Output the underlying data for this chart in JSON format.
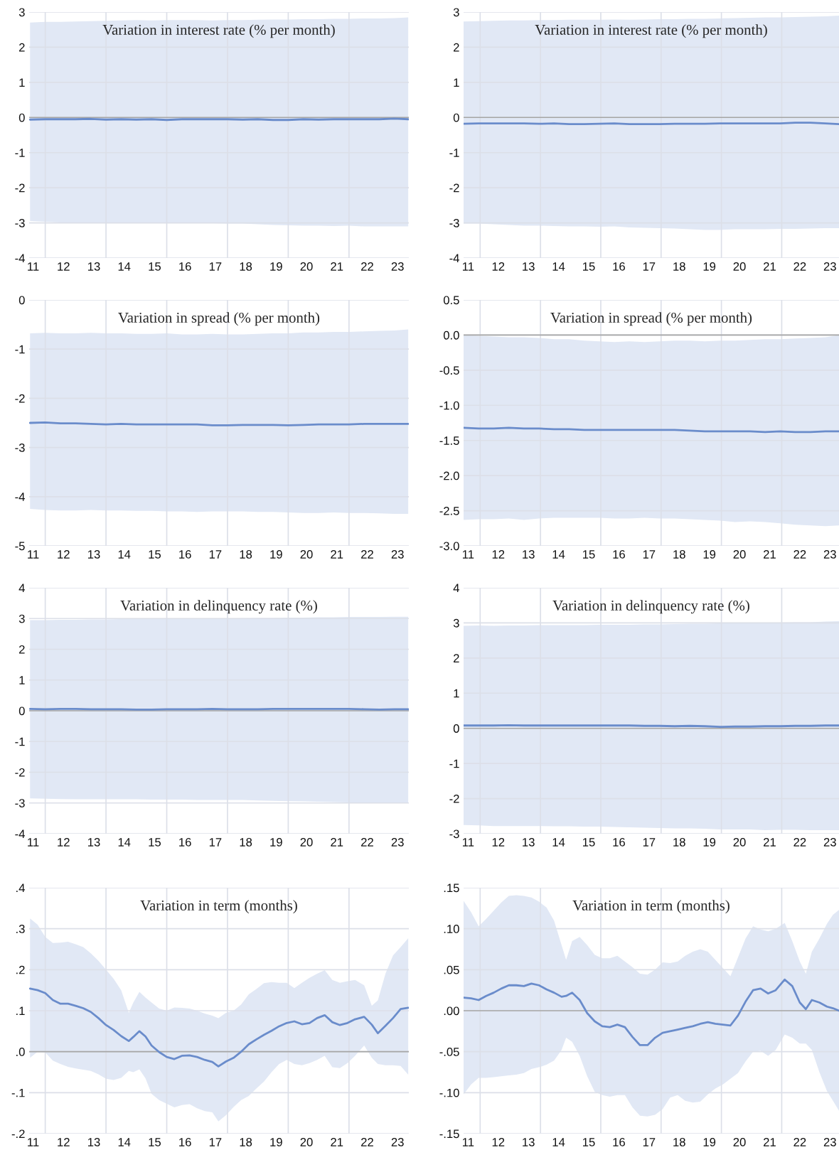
{
  "chart_data": [
    {
      "type": "line",
      "title": "Variation in interest rate (% per month)",
      "x": [
        10.9,
        11.4,
        11.9,
        12.4,
        12.9,
        13.4,
        13.9,
        14.4,
        14.9,
        15.4,
        15.9,
        16.4,
        16.9,
        17.4,
        17.9,
        18.4,
        18.9,
        19.4,
        19.9,
        20.4,
        20.9,
        21.4,
        21.9,
        22.4,
        22.9,
        23.35
      ],
      "series": [
        {
          "color": "#6a8ccb",
          "values": [
            -0.06,
            -0.05,
            -0.05,
            -0.05,
            -0.04,
            -0.06,
            -0.05,
            -0.06,
            -0.05,
            -0.07,
            -0.05,
            -0.05,
            -0.05,
            -0.05,
            -0.06,
            -0.05,
            -0.07,
            -0.07,
            -0.05,
            -0.06,
            -0.05,
            -0.05,
            -0.05,
            -0.05,
            -0.03,
            -0.05
          ],
          "upper": [
            2.7,
            2.72,
            2.72,
            2.73,
            2.74,
            2.75,
            2.76,
            2.77,
            2.76,
            2.77,
            2.77,
            2.77,
            2.76,
            2.77,
            2.77,
            2.78,
            2.79,
            2.79,
            2.8,
            2.8,
            2.81,
            2.81,
            2.82,
            2.82,
            2.83,
            2.85
          ],
          "lower": [
            -2.95,
            -2.97,
            -2.99,
            -3.0,
            -3.0,
            -3.0,
            -2.99,
            -3.0,
            -2.99,
            -3.0,
            -3.01,
            -3.0,
            -3.01,
            -3.02,
            -3.02,
            -3.04,
            -3.06,
            -3.07,
            -3.08,
            -3.08,
            -3.09,
            -3.08,
            -3.1,
            -3.1,
            -3.1,
            -3.1
          ]
        }
      ],
      "xlim": [
        10.87,
        23.37
      ],
      "xticks": [
        11,
        12,
        13,
        14,
        15,
        16,
        17,
        18,
        19,
        20,
        21,
        22,
        23
      ],
      "ylim": [
        -4,
        3
      ],
      "yticks": [
        3,
        2,
        1,
        0,
        -1,
        -2,
        -3,
        -4
      ],
      "grid": "y",
      "ref_lines": [
        {
          "axis": "y",
          "value": 0,
          "color": "#a6a6a6"
        },
        {
          "axis": "x",
          "value": 11.4,
          "color": "#dcdfe8"
        },
        {
          "axis": "x",
          "value": 13.4,
          "color": "#dcdfe8"
        },
        {
          "axis": "x",
          "value": 15.4,
          "color": "#dcdfe8"
        },
        {
          "axis": "x",
          "value": 17.4,
          "color": "#dcdfe8"
        },
        {
          "axis": "x",
          "value": 19.4,
          "color": "#dcdfe8"
        },
        {
          "axis": "x",
          "value": 21.4,
          "color": "#dcdfe8"
        }
      ]
    },
    {
      "type": "line",
      "title": "Variation in interest rate (% per month)",
      "x": [
        10.85,
        11.35,
        11.85,
        12.35,
        12.85,
        13.35,
        13.85,
        14.35,
        14.85,
        15.35,
        15.85,
        16.35,
        16.85,
        17.35,
        17.85,
        18.35,
        18.85,
        19.35,
        19.85,
        20.35,
        20.85,
        21.35,
        21.85,
        22.35,
        22.85,
        23.3
      ],
      "series": [
        {
          "color": "#6a8ccb",
          "values": [
            -0.18,
            -0.17,
            -0.17,
            -0.17,
            -0.17,
            -0.18,
            -0.17,
            -0.19,
            -0.19,
            -0.18,
            -0.17,
            -0.19,
            -0.19,
            -0.19,
            -0.18,
            -0.18,
            -0.18,
            -0.17,
            -0.17,
            -0.17,
            -0.17,
            -0.17,
            -0.15,
            -0.15,
            -0.17,
            -0.19
          ],
          "upper": [
            2.73,
            2.74,
            2.75,
            2.76,
            2.76,
            2.77,
            2.77,
            2.78,
            2.78,
            2.78,
            2.79,
            2.78,
            2.79,
            2.8,
            2.8,
            2.81,
            2.81,
            2.82,
            2.83,
            2.84,
            2.85,
            2.85,
            2.86,
            2.87,
            2.88,
            2.9
          ],
          "lower": [
            -3.02,
            -3.02,
            -3.04,
            -3.06,
            -3.08,
            -3.08,
            -3.09,
            -3.1,
            -3.1,
            -3.11,
            -3.1,
            -3.13,
            -3.14,
            -3.15,
            -3.16,
            -3.18,
            -3.2,
            -3.2,
            -3.18,
            -3.18,
            -3.18,
            -3.17,
            -3.17,
            -3.16,
            -3.15,
            -3.15
          ]
        }
      ],
      "xlim": [
        10.85,
        23.3
      ],
      "xticks": [
        11,
        12,
        13,
        14,
        15,
        16,
        17,
        18,
        19,
        20,
        21,
        22,
        23
      ],
      "ylim": [
        -4,
        3
      ],
      "yticks": [
        3,
        2,
        1,
        0,
        -1,
        -2,
        -3,
        -4
      ],
      "grid": "y",
      "ref_lines": [
        {
          "axis": "y",
          "value": 0,
          "color": "#a6a6a6"
        },
        {
          "axis": "x",
          "value": 11.4,
          "color": "#dcdfe8"
        },
        {
          "axis": "x",
          "value": 13.4,
          "color": "#dcdfe8"
        },
        {
          "axis": "x",
          "value": 15.4,
          "color": "#dcdfe8"
        },
        {
          "axis": "x",
          "value": 17.4,
          "color": "#dcdfe8"
        },
        {
          "axis": "x",
          "value": 19.4,
          "color": "#dcdfe8"
        },
        {
          "axis": "x",
          "value": 21.4,
          "color": "#dcdfe8"
        }
      ]
    },
    {
      "type": "line",
      "title": "Variation in spread (% per month)",
      "x": [
        10.9,
        11.4,
        11.9,
        12.4,
        12.9,
        13.4,
        13.9,
        14.4,
        14.9,
        15.4,
        15.9,
        16.4,
        16.9,
        17.4,
        17.9,
        18.4,
        18.9,
        19.4,
        19.9,
        20.4,
        20.9,
        21.4,
        21.9,
        22.4,
        22.9,
        23.35
      ],
      "series": [
        {
          "color": "#6a8ccb",
          "values": [
            -2.5,
            -2.49,
            -2.51,
            -2.51,
            -2.52,
            -2.53,
            -2.52,
            -2.53,
            -2.53,
            -2.53,
            -2.53,
            -2.53,
            -2.55,
            -2.55,
            -2.54,
            -2.54,
            -2.54,
            -2.55,
            -2.54,
            -2.53,
            -2.53,
            -2.53,
            -2.52,
            -2.52,
            -2.52,
            -2.52
          ],
          "upper": [
            -0.68,
            -0.67,
            -0.68,
            -0.68,
            -0.67,
            -0.68,
            -0.68,
            -0.69,
            -0.69,
            -0.68,
            -0.7,
            -0.7,
            -0.69,
            -0.7,
            -0.7,
            -0.69,
            -0.68,
            -0.68,
            -0.66,
            -0.66,
            -0.65,
            -0.65,
            -0.64,
            -0.63,
            -0.62,
            -0.6
          ],
          "lower": [
            -4.25,
            -4.27,
            -4.28,
            -4.28,
            -4.27,
            -4.28,
            -4.28,
            -4.29,
            -4.29,
            -4.3,
            -4.3,
            -4.31,
            -4.3,
            -4.3,
            -4.3,
            -4.31,
            -4.31,
            -4.32,
            -4.33,
            -4.33,
            -4.32,
            -4.33,
            -4.33,
            -4.34,
            -4.35,
            -4.35
          ]
        }
      ],
      "xlim": [
        10.87,
        23.37
      ],
      "xticks": [
        11,
        12,
        13,
        14,
        15,
        16,
        17,
        18,
        19,
        20,
        21,
        22,
        23
      ],
      "ylim": [
        -5,
        0
      ],
      "yticks": [
        0,
        -1,
        -2,
        -3,
        -4,
        -5
      ],
      "grid": "y",
      "ref_lines": [
        {
          "axis": "x",
          "value": 11.4,
          "color": "#dcdfe8"
        },
        {
          "axis": "x",
          "value": 13.4,
          "color": "#dcdfe8"
        },
        {
          "axis": "x",
          "value": 15.4,
          "color": "#dcdfe8"
        },
        {
          "axis": "x",
          "value": 17.4,
          "color": "#dcdfe8"
        },
        {
          "axis": "x",
          "value": 19.4,
          "color": "#dcdfe8"
        },
        {
          "axis": "x",
          "value": 21.4,
          "color": "#dcdfe8"
        }
      ]
    },
    {
      "type": "line",
      "title": "Variation in spread (% per month)",
      "x": [
        10.85,
        11.35,
        11.85,
        12.35,
        12.85,
        13.35,
        13.85,
        14.35,
        14.85,
        15.35,
        15.85,
        16.35,
        16.85,
        17.35,
        17.85,
        18.35,
        18.85,
        19.35,
        19.85,
        20.35,
        20.85,
        21.35,
        21.85,
        22.35,
        22.85,
        23.3
      ],
      "series": [
        {
          "color": "#6a8ccb",
          "values": [
            -1.32,
            -1.33,
            -1.33,
            -1.32,
            -1.33,
            -1.33,
            -1.34,
            -1.34,
            -1.35,
            -1.35,
            -1.35,
            -1.35,
            -1.35,
            -1.35,
            -1.35,
            -1.36,
            -1.37,
            -1.37,
            -1.37,
            -1.37,
            -1.38,
            -1.37,
            -1.38,
            -1.38,
            -1.37,
            -1.37
          ],
          "upper": [
            0.0,
            -0.01,
            -0.02,
            -0.03,
            -0.03,
            -0.04,
            -0.06,
            -0.06,
            -0.08,
            -0.09,
            -0.1,
            -0.09,
            -0.1,
            -0.09,
            -0.08,
            -0.08,
            -0.09,
            -0.08,
            -0.08,
            -0.07,
            -0.06,
            -0.06,
            -0.05,
            -0.04,
            -0.03,
            0.0
          ],
          "lower": [
            -2.63,
            -2.62,
            -2.62,
            -2.61,
            -2.63,
            -2.61,
            -2.6,
            -2.6,
            -2.6,
            -2.6,
            -2.61,
            -2.61,
            -2.6,
            -2.61,
            -2.61,
            -2.62,
            -2.63,
            -2.64,
            -2.66,
            -2.65,
            -2.66,
            -2.68,
            -2.7,
            -2.71,
            -2.72,
            -2.71
          ]
        }
      ],
      "xlim": [
        10.85,
        23.3
      ],
      "xticks": [
        11,
        12,
        13,
        14,
        15,
        16,
        17,
        18,
        19,
        20,
        21,
        22,
        23
      ],
      "ylim": [
        -3,
        0.5
      ],
      "yticks": [
        0.5,
        {
          "value": 0,
          "label": "0.0"
        },
        -0.5,
        {
          "value": -1,
          "label": "-1.0"
        },
        -1.5,
        {
          "value": -2,
          "label": "-2.0"
        },
        -2.5,
        {
          "value": -3,
          "label": "-3.0"
        }
      ],
      "grid": "y",
      "ref_lines": [
        {
          "axis": "y",
          "value": 0,
          "color": "#a6a6a6"
        },
        {
          "axis": "x",
          "value": 11.4,
          "color": "#dcdfe8"
        },
        {
          "axis": "x",
          "value": 13.4,
          "color": "#dcdfe8"
        },
        {
          "axis": "x",
          "value": 15.4,
          "color": "#dcdfe8"
        },
        {
          "axis": "x",
          "value": 17.4,
          "color": "#dcdfe8"
        },
        {
          "axis": "x",
          "value": 19.4,
          "color": "#dcdfe8"
        },
        {
          "axis": "x",
          "value": 21.4,
          "color": "#dcdfe8"
        }
      ]
    },
    {
      "type": "line",
      "title": "Variation in delinquency rate (%)",
      "x": [
        10.9,
        11.4,
        11.9,
        12.4,
        12.9,
        13.4,
        13.9,
        14.4,
        14.9,
        15.4,
        15.9,
        16.4,
        16.9,
        17.4,
        17.9,
        18.4,
        18.9,
        19.4,
        19.9,
        20.4,
        20.9,
        21.4,
        21.9,
        22.4,
        22.9,
        23.35
      ],
      "series": [
        {
          "color": "#6a8ccb",
          "values": [
            0.06,
            0.05,
            0.06,
            0.06,
            0.05,
            0.05,
            0.05,
            0.04,
            0.04,
            0.05,
            0.05,
            0.05,
            0.06,
            0.05,
            0.05,
            0.05,
            0.06,
            0.06,
            0.06,
            0.06,
            0.06,
            0.06,
            0.05,
            0.04,
            0.05,
            0.05
          ],
          "upper": [
            2.95,
            2.95,
            2.96,
            2.96,
            2.97,
            2.97,
            2.98,
            2.98,
            2.98,
            2.99,
            2.99,
            3.0,
            3.0,
            3.0,
            3.01,
            3.02,
            3.02,
            3.03,
            3.03,
            3.04,
            3.04,
            3.05,
            3.05,
            3.05,
            3.06,
            3.06
          ],
          "lower": [
            -2.85,
            -2.86,
            -2.87,
            -2.88,
            -2.88,
            -2.88,
            -2.88,
            -2.88,
            -2.89,
            -2.89,
            -2.89,
            -2.9,
            -2.9,
            -2.9,
            -2.9,
            -2.92,
            -2.93,
            -2.94,
            -2.95,
            -2.96,
            -2.97,
            -2.98,
            -2.99,
            -3.0,
            -3.0,
            -3.0
          ]
        }
      ],
      "xlim": [
        10.87,
        23.37
      ],
      "xticks": [
        11,
        12,
        13,
        14,
        15,
        16,
        17,
        18,
        19,
        20,
        21,
        22,
        23
      ],
      "ylim": [
        -4,
        4
      ],
      "yticks": [
        4,
        3,
        2,
        1,
        0,
        -1,
        -2,
        -3,
        -4
      ],
      "grid": "y",
      "ref_lines": [
        {
          "axis": "y",
          "value": 0,
          "color": "#a6a6a6"
        },
        {
          "axis": "x",
          "value": 11.4,
          "color": "#dcdfe8"
        },
        {
          "axis": "x",
          "value": 13.4,
          "color": "#dcdfe8"
        },
        {
          "axis": "x",
          "value": 15.4,
          "color": "#dcdfe8"
        },
        {
          "axis": "x",
          "value": 17.4,
          "color": "#dcdfe8"
        },
        {
          "axis": "x",
          "value": 19.4,
          "color": "#dcdfe8"
        },
        {
          "axis": "x",
          "value": 21.4,
          "color": "#dcdfe8"
        }
      ]
    },
    {
      "type": "line",
      "title": "Variation in delinquency rate (%)",
      "x": [
        10.85,
        11.35,
        11.85,
        12.35,
        12.85,
        13.35,
        13.85,
        14.35,
        14.85,
        15.35,
        15.85,
        16.35,
        16.85,
        17.35,
        17.85,
        18.35,
        18.85,
        19.35,
        19.85,
        20.35,
        20.85,
        21.35,
        21.85,
        22.35,
        22.85,
        23.3
      ],
      "series": [
        {
          "color": "#6a8ccb",
          "values": [
            0.08,
            0.08,
            0.08,
            0.09,
            0.08,
            0.08,
            0.08,
            0.08,
            0.08,
            0.08,
            0.08,
            0.08,
            0.07,
            0.07,
            0.06,
            0.07,
            0.06,
            0.04,
            0.05,
            0.05,
            0.06,
            0.06,
            0.07,
            0.07,
            0.08,
            0.08
          ],
          "upper": [
            2.92,
            2.93,
            2.92,
            2.93,
            2.93,
            2.94,
            2.94,
            2.94,
            2.94,
            2.95,
            2.95,
            2.95,
            2.96,
            2.96,
            2.97,
            2.98,
            2.98,
            2.99,
            2.99,
            3.0,
            3.0,
            3.01,
            3.02,
            3.02,
            3.04,
            3.05
          ],
          "lower": [
            -2.75,
            -2.76,
            -2.78,
            -2.78,
            -2.78,
            -2.78,
            -2.79,
            -2.79,
            -2.8,
            -2.8,
            -2.81,
            -2.82,
            -2.83,
            -2.84,
            -2.85,
            -2.85,
            -2.86,
            -2.88,
            -2.88,
            -2.88,
            -2.9,
            -2.89,
            -2.89,
            -2.9,
            -2.9,
            -2.9
          ]
        }
      ],
      "xlim": [
        10.85,
        23.3
      ],
      "xticks": [
        11,
        12,
        13,
        14,
        15,
        16,
        17,
        18,
        19,
        20,
        21,
        22,
        23
      ],
      "ylim": [
        -3,
        4
      ],
      "yticks": [
        4,
        3,
        2,
        1,
        0,
        -1,
        -2,
        -3
      ],
      "grid": "y",
      "ref_lines": [
        {
          "axis": "y",
          "value": 0,
          "color": "#a6a6a6"
        },
        {
          "axis": "x",
          "value": 11.4,
          "color": "#dcdfe8"
        },
        {
          "axis": "x",
          "value": 13.4,
          "color": "#dcdfe8"
        },
        {
          "axis": "x",
          "value": 15.4,
          "color": "#dcdfe8"
        },
        {
          "axis": "x",
          "value": 17.4,
          "color": "#dcdfe8"
        },
        {
          "axis": "x",
          "value": 19.4,
          "color": "#dcdfe8"
        },
        {
          "axis": "x",
          "value": 21.4,
          "color": "#dcdfe8"
        }
      ]
    },
    {
      "type": "line",
      "title": "Variation in term (months)",
      "x": [
        10.9,
        11.15,
        11.4,
        11.65,
        11.9,
        12.15,
        12.4,
        12.65,
        12.9,
        13.15,
        13.4,
        13.65,
        13.9,
        14.15,
        14.3,
        14.5,
        14.7,
        14.9,
        15.15,
        15.4,
        15.65,
        15.9,
        16.15,
        16.4,
        16.65,
        16.9,
        17.1,
        17.35,
        17.6,
        17.85,
        18.1,
        18.35,
        18.6,
        18.85,
        19.1,
        19.35,
        19.6,
        19.85,
        20.1,
        20.35,
        20.6,
        20.85,
        21.1,
        21.35,
        21.6,
        21.9,
        22.15,
        22.35,
        22.6,
        22.85,
        23.1,
        23.35
      ],
      "series": [
        {
          "color": "#6a8ccb",
          "values": [
            0.154,
            0.15,
            0.143,
            0.126,
            0.117,
            0.117,
            0.112,
            0.106,
            0.097,
            0.082,
            0.065,
            0.053,
            0.038,
            0.026,
            0.036,
            0.05,
            0.037,
            0.015,
            -0.001,
            -0.013,
            -0.018,
            -0.01,
            -0.009,
            -0.013,
            -0.02,
            -0.025,
            -0.036,
            -0.024,
            -0.015,
            0.0,
            0.018,
            0.03,
            0.041,
            0.051,
            0.062,
            0.07,
            0.074,
            0.067,
            0.07,
            0.082,
            0.089,
            0.072,
            0.065,
            0.07,
            0.079,
            0.085,
            0.066,
            0.045,
            0.063,
            0.082,
            0.104,
            0.107
          ],
          "upper": [
            0.325,
            0.31,
            0.28,
            0.265,
            0.266,
            0.268,
            0.262,
            0.255,
            0.24,
            0.222,
            0.2,
            0.178,
            0.15,
            0.095,
            0.12,
            0.146,
            0.132,
            0.12,
            0.105,
            0.1,
            0.108,
            0.107,
            0.105,
            0.1,
            0.093,
            0.088,
            0.082,
            0.095,
            0.1,
            0.115,
            0.14,
            0.153,
            0.167,
            0.17,
            0.168,
            0.168,
            0.155,
            0.168,
            0.18,
            0.19,
            0.199,
            0.175,
            0.168,
            0.172,
            0.175,
            0.162,
            0.112,
            0.125,
            0.19,
            0.235,
            0.255,
            0.277
          ],
          "lower": [
            -0.015,
            0.0,
            -0.002,
            -0.022,
            -0.03,
            -0.037,
            -0.041,
            -0.044,
            -0.047,
            -0.055,
            -0.066,
            -0.069,
            -0.064,
            -0.047,
            -0.05,
            -0.043,
            -0.065,
            -0.103,
            -0.118,
            -0.127,
            -0.136,
            -0.13,
            -0.128,
            -0.138,
            -0.145,
            -0.148,
            -0.17,
            -0.155,
            -0.135,
            -0.118,
            -0.108,
            -0.09,
            -0.073,
            -0.05,
            -0.03,
            -0.02,
            -0.03,
            -0.033,
            -0.028,
            -0.02,
            -0.01,
            -0.038,
            -0.04,
            -0.028,
            -0.01,
            0.015,
            -0.015,
            -0.03,
            -0.033,
            -0.033,
            -0.035,
            -0.056
          ]
        }
      ],
      "xlim": [
        10.87,
        23.37
      ],
      "xticks": [
        11,
        12,
        13,
        14,
        15,
        16,
        17,
        18,
        19,
        20,
        21,
        22,
        23
      ],
      "ylim": [
        -0.2,
        0.4
      ],
      "yticks": [
        {
          "value": 0.4,
          "label": ".4"
        },
        {
          "value": 0.3,
          "label": ".3"
        },
        {
          "value": 0.2,
          "label": ".2"
        },
        {
          "value": 0.1,
          "label": ".1"
        },
        {
          "value": 0,
          "label": ".0"
        },
        {
          "value": -0.1,
          "label": "-.1"
        },
        {
          "value": -0.2,
          "label": "-.2"
        }
      ],
      "grid": "y",
      "ref_lines": [
        {
          "axis": "y",
          "value": 0,
          "color": "#a6a6a6"
        },
        {
          "axis": "x",
          "value": 11.4,
          "color": "#dcdfe8"
        },
        {
          "axis": "x",
          "value": 13.4,
          "color": "#dcdfe8"
        },
        {
          "axis": "x",
          "value": 15.4,
          "color": "#dcdfe8"
        },
        {
          "axis": "x",
          "value": 17.4,
          "color": "#dcdfe8"
        },
        {
          "axis": "x",
          "value": 19.4,
          "color": "#dcdfe8"
        },
        {
          "axis": "x",
          "value": 21.4,
          "color": "#dcdfe8"
        }
      ]
    },
    {
      "type": "line",
      "title": "Variation in term (months)",
      "x": [
        10.85,
        11.1,
        11.35,
        11.6,
        11.85,
        12.1,
        12.35,
        12.6,
        12.85,
        13.1,
        13.35,
        13.6,
        13.85,
        14.1,
        14.25,
        14.45,
        14.7,
        14.95,
        15.2,
        15.45,
        15.7,
        15.95,
        16.2,
        16.45,
        16.7,
        16.95,
        17.2,
        17.45,
        17.7,
        17.95,
        18.2,
        18.45,
        18.7,
        18.95,
        19.2,
        19.45,
        19.7,
        19.95,
        20.2,
        20.45,
        20.7,
        20.95,
        21.2,
        21.5,
        21.75,
        22.0,
        22.2,
        22.4,
        22.65,
        22.9,
        23.1,
        23.3
      ],
      "series": [
        {
          "color": "#6a8ccb",
          "values": [
            0.016,
            0.015,
            0.013,
            0.018,
            0.022,
            0.027,
            0.031,
            0.031,
            0.03,
            0.033,
            0.031,
            0.026,
            0.022,
            0.017,
            0.018,
            0.022,
            0.013,
            -0.003,
            -0.013,
            -0.019,
            -0.02,
            -0.017,
            -0.02,
            -0.032,
            -0.042,
            -0.042,
            -0.033,
            -0.027,
            -0.025,
            -0.023,
            -0.021,
            -0.019,
            -0.016,
            -0.014,
            -0.016,
            -0.017,
            -0.018,
            -0.006,
            0.011,
            0.025,
            0.027,
            0.021,
            0.025,
            0.038,
            0.03,
            0.01,
            0.002,
            0.013,
            0.01,
            0.005,
            0.003,
            0.0
          ],
          "upper": [
            0.134,
            0.12,
            0.103,
            0.112,
            0.122,
            0.132,
            0.14,
            0.141,
            0.14,
            0.138,
            0.133,
            0.126,
            0.11,
            0.08,
            0.062,
            0.085,
            0.09,
            0.08,
            0.068,
            0.064,
            0.064,
            0.067,
            0.06,
            0.053,
            0.045,
            0.044,
            0.05,
            0.059,
            0.058,
            0.06,
            0.067,
            0.072,
            0.075,
            0.072,
            0.062,
            0.052,
            0.042,
            0.065,
            0.088,
            0.103,
            0.099,
            0.097,
            0.1,
            0.107,
            0.085,
            0.06,
            0.045,
            0.072,
            0.088,
            0.106,
            0.117,
            0.123
          ],
          "lower": [
            -0.102,
            -0.09,
            -0.082,
            -0.082,
            -0.081,
            -0.08,
            -0.079,
            -0.078,
            -0.076,
            -0.071,
            -0.069,
            -0.066,
            -0.061,
            -0.048,
            -0.033,
            -0.038,
            -0.055,
            -0.08,
            -0.099,
            -0.103,
            -0.105,
            -0.103,
            -0.103,
            -0.118,
            -0.128,
            -0.129,
            -0.127,
            -0.12,
            -0.106,
            -0.103,
            -0.11,
            -0.112,
            -0.111,
            -0.102,
            -0.095,
            -0.09,
            -0.083,
            -0.076,
            -0.062,
            -0.05,
            -0.049,
            -0.055,
            -0.048,
            -0.029,
            -0.033,
            -0.04,
            -0.04,
            -0.048,
            -0.075,
            -0.098,
            -0.11,
            -0.122
          ]
        }
      ],
      "xlim": [
        10.85,
        23.3
      ],
      "xticks": [
        11,
        12,
        13,
        14,
        15,
        16,
        17,
        18,
        19,
        20,
        21,
        22,
        23
      ],
      "ylim": [
        -0.15,
        0.15
      ],
      "yticks": [
        {
          "value": 0.15,
          "label": ".15"
        },
        {
          "value": 0.1,
          "label": ".10"
        },
        {
          "value": 0.05,
          "label": ".05"
        },
        {
          "value": 0,
          "label": ".00"
        },
        {
          "value": -0.05,
          "label": "-.05"
        },
        {
          "value": -0.1,
          "label": "-.10"
        },
        {
          "value": -0.15,
          "label": "-.15"
        }
      ],
      "grid": "y",
      "ref_lines": [
        {
          "axis": "y",
          "value": 0,
          "color": "#a6a6a6"
        },
        {
          "axis": "x",
          "value": 11.4,
          "color": "#dcdfe8"
        },
        {
          "axis": "x",
          "value": 13.4,
          "color": "#dcdfe8"
        },
        {
          "axis": "x",
          "value": 15.4,
          "color": "#dcdfe8"
        },
        {
          "axis": "x",
          "value": 17.4,
          "color": "#dcdfe8"
        },
        {
          "axis": "x",
          "value": 19.4,
          "color": "#dcdfe8"
        },
        {
          "axis": "x",
          "value": 21.4,
          "color": "#dcdfe8"
        }
      ]
    }
  ]
}
